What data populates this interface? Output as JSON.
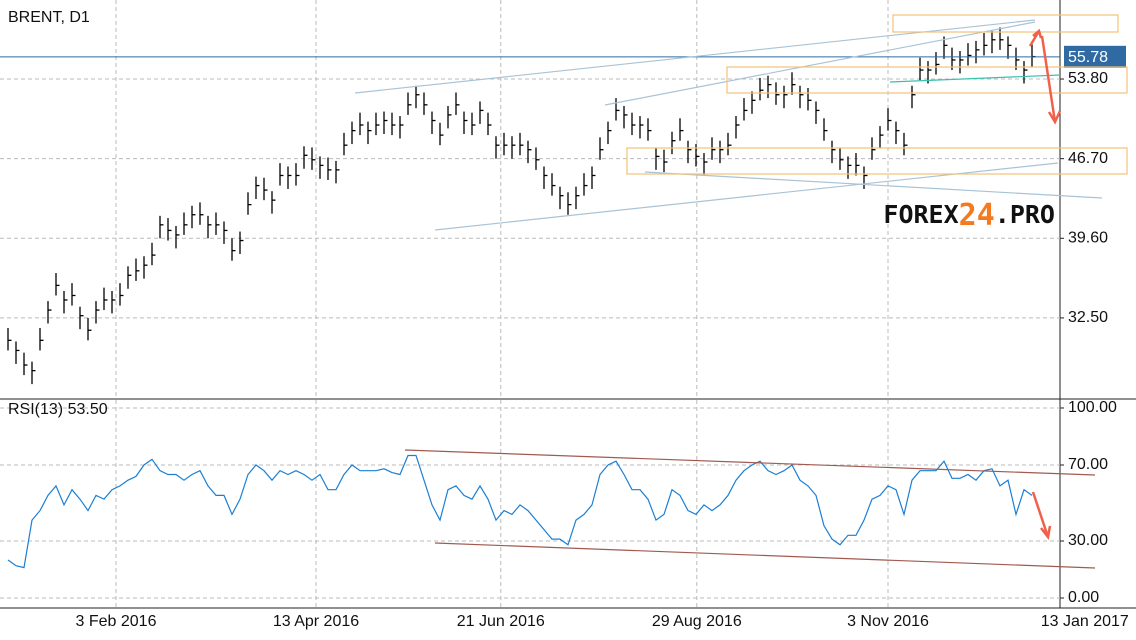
{
  "chart_data": [
    {
      "type": "ohlc",
      "title": "BRENT, D1",
      "color": "#000000",
      "grid": true,
      "high": [
        31.6,
        30.4,
        29.4,
        28.6,
        31.6,
        34.0,
        36.5,
        34.9,
        35.6,
        33.5,
        32.5,
        34.0,
        35.2,
        34.9,
        35.6,
        37.1,
        37.8,
        38.0,
        39.2,
        41.6,
        41.4,
        40.7,
        41.9,
        42.5,
        42.8,
        41.6,
        41.9,
        41.1,
        39.6,
        40.2,
        43.7,
        45.1,
        45.0,
        43.8,
        46.3,
        46.0,
        46.3,
        47.8,
        47.7,
        46.9,
        46.8,
        46.5,
        49.0,
        50.0,
        50.8,
        50.0,
        50.8,
        50.9,
        50.8,
        50.5,
        52.6,
        53.2,
        52.6,
        50.9,
        49.9,
        51.4,
        52.6,
        50.9,
        50.8,
        51.8,
        50.8,
        48.7,
        49.0,
        48.7,
        49.0,
        48.3,
        47.7,
        46.0,
        45.4,
        44.2,
        43.7,
        44.2,
        45.4,
        46.0,
        48.6,
        50.0,
        52.1,
        51.4,
        50.8,
        50.5,
        50.3,
        47.7,
        47.5,
        49.1,
        50.3,
        48.3,
        48.0,
        47.2,
        48.6,
        48.3,
        49.0,
        50.5,
        52.1,
        52.7,
        53.9,
        54.1,
        53.5,
        53.2,
        54.4,
        53.2,
        53.0,
        51.8,
        50.3,
        48.3,
        47.7,
        46.9,
        47.2,
        46.0,
        48.6,
        49.6,
        51.2,
        50.0,
        49.0,
        53.2,
        55.7,
        55.4,
        56.2,
        57.6,
        56.6,
        56.3,
        57.0,
        57.2,
        57.9,
        58.1,
        58.4,
        57.6,
        56.6,
        55.4,
        56.9
      ],
      "low": [
        29.6,
        28.4,
        27.4,
        26.6,
        29.6,
        32.0,
        34.5,
        32.9,
        33.6,
        31.5,
        30.5,
        32.0,
        33.2,
        32.9,
        33.6,
        35.1,
        35.8,
        36.0,
        37.2,
        39.6,
        39.4,
        38.7,
        39.9,
        40.5,
        40.8,
        39.6,
        39.9,
        39.1,
        37.6,
        38.2,
        41.7,
        43.1,
        43.0,
        41.8,
        44.3,
        44.0,
        44.3,
        45.8,
        45.7,
        44.9,
        44.8,
        44.5,
        47.0,
        48.0,
        48.8,
        48.0,
        48.8,
        48.9,
        48.8,
        48.5,
        50.6,
        51.2,
        50.6,
        48.9,
        47.9,
        49.4,
        50.6,
        48.9,
        48.8,
        49.8,
        48.8,
        46.7,
        47.0,
        46.7,
        47.0,
        46.3,
        45.7,
        44.0,
        43.4,
        42.2,
        41.7,
        42.2,
        43.4,
        44.0,
        46.6,
        48.0,
        50.1,
        49.4,
        48.8,
        48.5,
        48.3,
        45.7,
        45.5,
        47.1,
        48.3,
        46.3,
        46.0,
        45.2,
        46.6,
        46.3,
        47.0,
        48.5,
        50.1,
        50.7,
        51.9,
        52.1,
        51.5,
        51.2,
        52.4,
        51.2,
        51.0,
        49.8,
        48.3,
        46.3,
        45.7,
        44.9,
        45.2,
        44.0,
        46.6,
        47.6,
        49.2,
        48.0,
        47.0,
        51.2,
        53.7,
        53.4,
        54.2,
        55.6,
        54.6,
        54.3,
        55.0,
        55.2,
        55.9,
        56.1,
        56.4,
        55.6,
        54.6,
        53.4,
        54.9
      ],
      "close": [
        30.5,
        29.6,
        28.3,
        27.8,
        30.5,
        33.2,
        35.4,
        34.1,
        34.5,
        32.7,
        31.4,
        33.2,
        34.1,
        34.1,
        34.5,
        36.3,
        36.7,
        37.2,
        38.1,
        40.8,
        40.3,
        39.9,
        40.8,
        41.7,
        41.7,
        40.8,
        40.8,
        40.3,
        38.5,
        39.4,
        42.6,
        44.3,
        43.9,
        43.0,
        45.2,
        45.2,
        45.2,
        47.0,
        46.6,
        46.1,
        45.7,
        45.7,
        47.9,
        49.2,
        49.7,
        49.2,
        49.7,
        50.1,
        49.7,
        49.7,
        51.5,
        52.4,
        51.5,
        50.1,
        48.8,
        50.6,
        51.5,
        50.1,
        49.7,
        51.0,
        49.7,
        47.9,
        47.9,
        47.9,
        47.9,
        47.5,
        46.6,
        45.2,
        44.3,
        43.4,
        42.6,
        43.4,
        44.3,
        45.2,
        47.5,
        49.2,
        51.0,
        50.6,
        49.7,
        49.7,
        49.2,
        46.9,
        46.4,
        48.3,
        49.2,
        47.5,
        46.9,
        46.4,
        47.5,
        47.5,
        47.9,
        49.7,
        51.0,
        51.9,
        52.8,
        53.3,
        52.4,
        52.4,
        53.3,
        52.4,
        51.9,
        51.0,
        49.2,
        47.5,
        46.6,
        46.1,
        46.1,
        45.2,
        47.5,
        48.8,
        50.1,
        49.2,
        47.9,
        52.4,
        54.6,
        54.6,
        55.1,
        56.8,
        55.5,
        55.5,
        55.9,
        56.4,
        56.8,
        57.3,
        57.3,
        56.8,
        55.5,
        54.6,
        55.8
      ],
      "ylim": [
        25.36,
        60.4
      ],
      "yticks": [
        {
          "value": 32.5,
          "label": "32.50"
        },
        {
          "value": 39.6,
          "label": "39.60"
        },
        {
          "value": 46.7,
          "label": "46.70"
        },
        {
          "value": 53.8,
          "label": "53.80"
        }
      ],
      "xlim": [
        -1,
        131.5
      ],
      "xticks": [
        {
          "value": 13.5,
          "label": "3 Feb 2016"
        },
        {
          "value": 38.5,
          "label": "13 Apr 2016"
        },
        {
          "value": 61.6,
          "label": "21 Jun 2016"
        },
        {
          "value": 86.1,
          "label": "29 Aug 2016"
        },
        {
          "value": 110,
          "label": "3 Nov 2016"
        },
        {
          "value": 134.6,
          "label": "13 Jan 2017"
        }
      ],
      "last_price": {
        "value": 55.78,
        "label": "55.78"
      },
      "watermark": [
        "FOREX",
        "24",
        ".PRO"
      ]
    },
    {
      "type": "line",
      "title": "RSI(13) 53.50",
      "color": "#1a7fd4",
      "grid": true,
      "values": [
        20,
        17,
        16,
        41,
        46,
        54,
        59,
        49,
        57,
        52,
        46,
        54,
        52,
        57,
        59,
        62,
        64,
        70,
        73,
        67,
        65,
        65,
        62,
        65,
        67,
        59,
        54,
        54,
        44,
        52,
        65,
        70,
        67,
        62,
        67,
        65,
        67,
        65,
        62,
        65,
        57,
        57,
        65,
        70,
        67,
        67,
        67,
        68,
        66,
        65,
        75,
        75,
        62,
        49,
        41,
        57,
        59,
        54,
        52,
        59,
        52,
        41,
        46,
        44,
        49,
        46,
        41,
        36,
        31,
        31,
        28,
        41,
        44,
        49,
        65,
        70,
        72,
        65,
        57,
        57,
        52,
        41,
        44,
        57,
        54,
        46,
        44,
        49,
        46,
        49,
        54,
        62,
        67,
        70,
        72,
        67,
        65,
        67,
        70,
        62,
        59,
        54,
        38,
        31,
        28,
        33,
        33,
        41,
        52,
        54,
        59,
        57,
        44,
        62,
        67,
        67,
        67,
        72,
        63,
        63,
        65,
        62,
        67,
        68,
        59,
        62,
        44,
        57,
        54
      ],
      "ylim": [
        -5.26,
        104.2
      ],
      "yticks": [
        {
          "value": 0,
          "label": "0.00"
        },
        {
          "value": 30,
          "label": "30.00"
        },
        {
          "value": 70,
          "label": "70.00"
        },
        {
          "value": 100,
          "label": "100.00"
        }
      ],
      "xlim": [
        -1,
        131.5
      ]
    }
  ]
}
